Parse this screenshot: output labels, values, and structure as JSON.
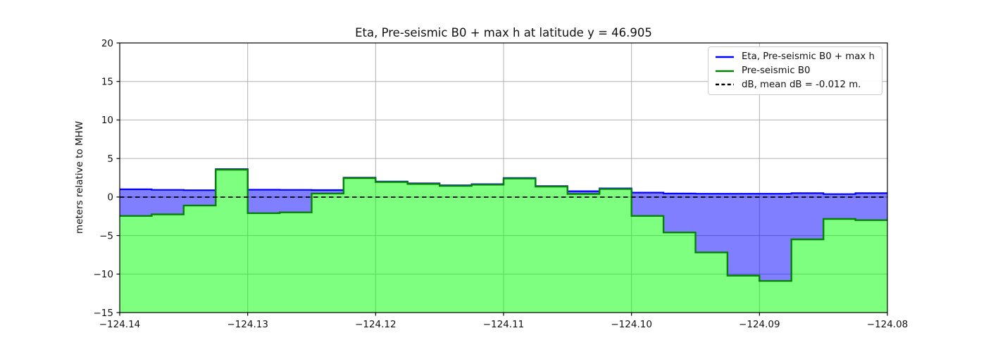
{
  "chart_data": {
    "type": "area",
    "title": "Eta, Pre-seismic B0 + max h at latitude y = 46.905",
    "xlabel": "",
    "ylabel": "meters relative to MHW",
    "xlim": [
      -124.14,
      -124.08
    ],
    "ylim": [
      -15,
      20
    ],
    "xticks": [
      -124.14,
      -124.13,
      -124.12,
      -124.11,
      -124.1,
      -124.09,
      -124.08
    ],
    "yticks": [
      -15,
      -10,
      -5,
      0,
      5,
      10,
      15,
      20
    ],
    "grid": true,
    "grid_color": "#b0b0b0",
    "legend_position": "upper right",
    "step_edges_longitude": [
      -124.14,
      -124.1375,
      -124.135,
      -124.1325,
      -124.13,
      -124.1275,
      -124.125,
      -124.1225,
      -124.12,
      -124.1175,
      -124.115,
      -124.1125,
      -124.11,
      -124.1075,
      -124.105,
      -124.1025,
      -124.1,
      -124.0975,
      -124.095,
      -124.0925,
      -124.09,
      -124.0875,
      -124.085,
      -124.0825,
      -124.08
    ],
    "series": [
      {
        "name": "Eta, Pre-seismic B0 + max h",
        "kind": "step",
        "color": "#0000ff",
        "fill": "rgba(0,0,255,0.5)",
        "values": [
          1.0,
          0.93,
          0.88,
          3.62,
          0.95,
          0.93,
          0.9,
          2.52,
          2.02,
          1.77,
          1.52,
          1.67,
          2.47,
          1.42,
          0.75,
          1.12,
          0.57,
          0.45,
          0.43,
          0.43,
          0.43,
          0.5,
          0.38,
          0.5
        ]
      },
      {
        "name": "Pre-seismic B0",
        "kind": "step",
        "color": "#068006",
        "fill": "rgba(0,255,0,0.5)",
        "values": [
          -2.45,
          -2.25,
          -1.1,
          3.55,
          -2.1,
          -2.0,
          0.45,
          2.45,
          1.95,
          1.7,
          1.45,
          1.6,
          2.4,
          1.35,
          0.4,
          1.05,
          -2.45,
          -4.6,
          -7.2,
          -10.2,
          -10.9,
          -5.5,
          -2.85,
          -3.0
        ]
      },
      {
        "name": "dB, mean dB = -0.012 m.",
        "kind": "hline",
        "color": "#000000",
        "dash": true,
        "value": -0.012
      }
    ]
  }
}
